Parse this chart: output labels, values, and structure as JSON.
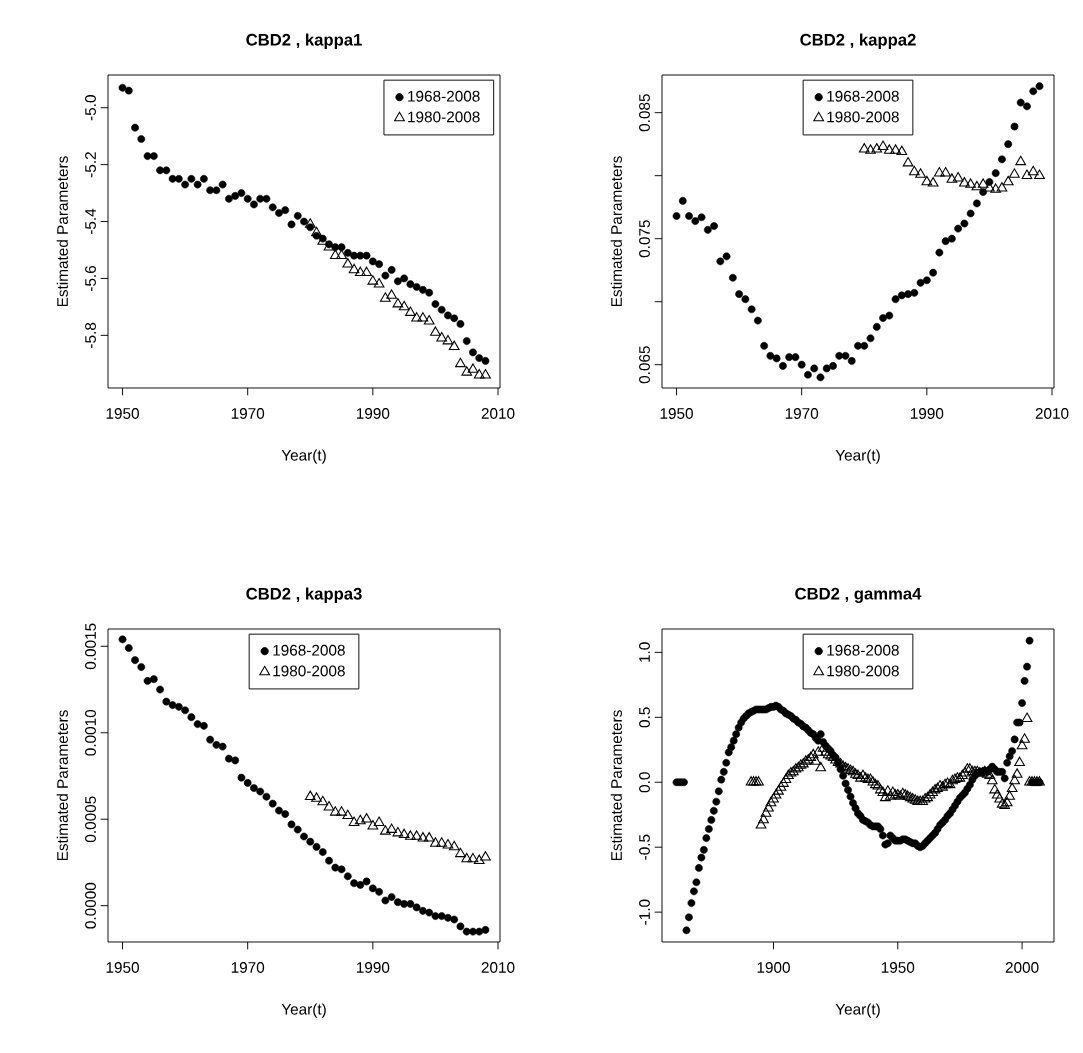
{
  "chart_data": [
    {
      "type": "scatter",
      "title": "CBD2 , kappa1",
      "xlabel": "Year(t)",
      "ylabel": "Estimated Parameters",
      "legend": "top right",
      "xlim": [
        1947.68,
        2010.32
      ],
      "ylim": [
        -5.985,
        -4.885
      ],
      "xticks": [
        1950,
        1970,
        1990,
        2010
      ],
      "yticks": [
        {
          "value": -5,
          "label": "-5.0"
        },
        -5.2,
        -5.4,
        -5.6,
        -5.8
      ],
      "series": [
        {
          "name": "1968-2008",
          "color": "#000000",
          "marker": "circle",
          "x": [
            1950,
            1951,
            1952,
            1953,
            1954,
            1955,
            1956,
            1957,
            1958,
            1959,
            1960,
            1961,
            1962,
            1963,
            1964,
            1965,
            1966,
            1967,
            1968,
            1969,
            1970,
            1971,
            1972,
            1973,
            1974,
            1975,
            1976,
            1977,
            1978,
            1979,
            1980,
            1981,
            1982,
            1983,
            1984,
            1985,
            1986,
            1987,
            1988,
            1989,
            1990,
            1991,
            1992,
            1993,
            1994,
            1995,
            1996,
            1997,
            1998,
            1999,
            2000,
            2001,
            2002,
            2003,
            2004,
            2005,
            2006,
            2007,
            2008
          ],
          "values": [
            -4.93,
            -4.94,
            -5.07,
            -5.11,
            -5.17,
            -5.17,
            -5.22,
            -5.22,
            -5.25,
            -5.25,
            -5.27,
            -5.25,
            -5.27,
            -5.25,
            -5.29,
            -5.29,
            -5.27,
            -5.32,
            -5.31,
            -5.3,
            -5.32,
            -5.34,
            -5.32,
            -5.32,
            -5.35,
            -5.37,
            -5.36,
            -5.41,
            -5.38,
            -5.4,
            -5.42,
            -5.45,
            -5.46,
            -5.48,
            -5.49,
            -5.49,
            -5.51,
            -5.52,
            -5.52,
            -5.52,
            -5.54,
            -5.55,
            -5.59,
            -5.57,
            -5.61,
            -5.6,
            -5.62,
            -5.63,
            -5.64,
            -5.65,
            -5.69,
            -5.71,
            -5.73,
            -5.74,
            -5.76,
            -5.82,
            -5.86,
            -5.88,
            -5.89
          ]
        },
        {
          "name": "1980-2008",
          "color": "#000000",
          "marker": "triangle",
          "x": [
            1980,
            1981,
            1982,
            1983,
            1984,
            1985,
            1986,
            1987,
            1988,
            1989,
            1990,
            1991,
            1992,
            1993,
            1994,
            1995,
            1996,
            1997,
            1998,
            1999,
            2000,
            2001,
            2002,
            2003,
            2004,
            2005,
            2006,
            2007,
            2008
          ],
          "values": [
            -5.41,
            -5.44,
            -5.47,
            -5.49,
            -5.52,
            -5.52,
            -5.55,
            -5.57,
            -5.58,
            -5.58,
            -5.61,
            -5.62,
            -5.67,
            -5.66,
            -5.69,
            -5.7,
            -5.72,
            -5.74,
            -5.74,
            -5.75,
            -5.79,
            -5.81,
            -5.82,
            -5.84,
            -5.9,
            -5.93,
            -5.92,
            -5.94,
            -5.94
          ]
        }
      ]
    },
    {
      "type": "scatter",
      "title": "CBD2 , kappa2",
      "xlabel": "Year(t)",
      "ylabel": "Estimated Parameters",
      "legend": "top",
      "xlim": [
        1947.68,
        2010.32
      ],
      "ylim": [
        0.06315,
        0.08799
      ],
      "xticks": [
        1950,
        1970,
        1990,
        2010
      ],
      "yticks": [
        0.065,
        {
          "value": 0.07,
          "label": null
        },
        0.075,
        {
          "value": 0.08,
          "label": null
        },
        0.085
      ],
      "series": [
        {
          "name": "1968-2008",
          "color": "#000000",
          "marker": "circle",
          "x": [
            1950,
            1951,
            1952,
            1953,
            1954,
            1955,
            1956,
            1957,
            1958,
            1959,
            1960,
            1961,
            1962,
            1963,
            1964,
            1965,
            1966,
            1967,
            1968,
            1969,
            1970,
            1971,
            1972,
            1973,
            1974,
            1975,
            1976,
            1977,
            1978,
            1979,
            1980,
            1981,
            1982,
            1983,
            1984,
            1985,
            1986,
            1987,
            1988,
            1989,
            1990,
            1991,
            1992,
            1993,
            1994,
            1995,
            1996,
            1997,
            1998,
            1999,
            2000,
            2001,
            2002,
            2003,
            2004,
            2005,
            2006,
            2007,
            2008
          ],
          "values": [
            0.0768,
            0.078,
            0.0768,
            0.0764,
            0.0767,
            0.0757,
            0.076,
            0.0732,
            0.0736,
            0.0719,
            0.0706,
            0.0702,
            0.0694,
            0.0685,
            0.0665,
            0.0657,
            0.0655,
            0.0649,
            0.0656,
            0.0656,
            0.065,
            0.0642,
            0.0647,
            0.064,
            0.0647,
            0.0649,
            0.0657,
            0.0657,
            0.0653,
            0.0665,
            0.0665,
            0.0671,
            0.068,
            0.0687,
            0.0689,
            0.0702,
            0.0705,
            0.0706,
            0.0707,
            0.0715,
            0.0717,
            0.0723,
            0.0739,
            0.0748,
            0.075,
            0.0758,
            0.0762,
            0.077,
            0.0778,
            0.0787,
            0.0795,
            0.0802,
            0.0813,
            0.0825,
            0.0839,
            0.0858,
            0.0855,
            0.0867,
            0.0871
          ]
        },
        {
          "name": "1980-2008",
          "color": "#000000",
          "marker": "triangle",
          "x": [
            1980,
            1981,
            1982,
            1983,
            1984,
            1985,
            1986,
            1987,
            1988,
            1989,
            1990,
            1991,
            1992,
            1993,
            1994,
            1995,
            1996,
            1997,
            1998,
            1999,
            2000,
            2001,
            2002,
            2003,
            2004,
            2005,
            2006,
            2007,
            2008
          ],
          "values": [
            0.0821,
            0.082,
            0.0821,
            0.0823,
            0.082,
            0.082,
            0.0819,
            0.081,
            0.0803,
            0.0801,
            0.0795,
            0.0794,
            0.0802,
            0.0802,
            0.0797,
            0.0798,
            0.0794,
            0.0793,
            0.0791,
            0.0793,
            0.079,
            0.0789,
            0.079,
            0.0795,
            0.0801,
            0.0811,
            0.08,
            0.0803,
            0.08
          ]
        }
      ]
    },
    {
      "type": "scatter",
      "title": "CBD2 , kappa3",
      "xlabel": "Year(t)",
      "ylabel": "Estimated Parameters",
      "legend": "top",
      "xlim": [
        1947.68,
        2010.32
      ],
      "ylim": [
        -0.00021,
        0.0016
      ],
      "xticks": [
        1950,
        1970,
        1990,
        2010
      ],
      "yticks": [
        {
          "value": 0,
          "label": "0.0000"
        },
        {
          "value": 0.0005,
          "label": "0.0005"
        },
        {
          "value": 0.001,
          "label": "0.0010"
        },
        {
          "value": 0.0015,
          "label": "0.0015"
        }
      ],
      "series": [
        {
          "name": "1968-2008",
          "color": "#000000",
          "marker": "circle",
          "x": [
            1950,
            1951,
            1952,
            1953,
            1954,
            1955,
            1956,
            1957,
            1958,
            1959,
            1960,
            1961,
            1962,
            1963,
            1964,
            1965,
            1966,
            1967,
            1968,
            1969,
            1970,
            1971,
            1972,
            1973,
            1974,
            1975,
            1976,
            1977,
            1978,
            1979,
            1980,
            1981,
            1982,
            1983,
            1984,
            1985,
            1986,
            1987,
            1988,
            1989,
            1990,
            1991,
            1992,
            1993,
            1994,
            1995,
            1996,
            1997,
            1998,
            1999,
            2000,
            2001,
            2002,
            2003,
            2004,
            2005,
            2006,
            2007,
            2008
          ],
          "values": [
            0.00154,
            0.00149,
            0.00142,
            0.00138,
            0.0013,
            0.00131,
            0.00125,
            0.00118,
            0.00116,
            0.00115,
            0.00113,
            0.00109,
            0.00105,
            0.00104,
            0.00096,
            0.00093,
            0.00092,
            0.00085,
            0.00084,
            0.00074,
            0.00071,
            0.00068,
            0.00066,
            0.00063,
            0.00059,
            0.00055,
            0.00053,
            0.00047,
            0.00044,
            0.0004,
            0.00037,
            0.00034,
            0.00031,
            0.00026,
            0.00022,
            0.00021,
            0.00017,
            0.00013,
            0.00012,
            0.00014,
            0.0001,
            8e-05,
            3e-05,
            5e-05,
            2e-05,
            1e-05,
            1e-05,
            -1e-05,
            -3e-05,
            -4e-05,
            -6e-05,
            -6e-05,
            -7e-05,
            -8e-05,
            -0.00012,
            -0.00015,
            -0.00015,
            -0.00015,
            -0.00014
          ]
        },
        {
          "name": "1980-2008",
          "color": "#000000",
          "marker": "triangle",
          "x": [
            1980,
            1981,
            1982,
            1983,
            1984,
            1985,
            1986,
            1987,
            1988,
            1989,
            1990,
            1991,
            1992,
            1993,
            1994,
            1995,
            1996,
            1997,
            1998,
            1999,
            2000,
            2001,
            2002,
            2003,
            2004,
            2005,
            2006,
            2007,
            2008
          ],
          "values": [
            0.00063,
            0.00062,
            0.0006,
            0.00057,
            0.00054,
            0.00054,
            0.00052,
            0.00048,
            0.00049,
            0.0005,
            0.00046,
            0.00048,
            0.00043,
            0.00044,
            0.00042,
            0.00041,
            0.0004,
            0.0004,
            0.00039,
            0.00039,
            0.00036,
            0.00036,
            0.00035,
            0.00034,
            0.0003,
            0.00027,
            0.00027,
            0.00026,
            0.00028
          ]
        }
      ]
    },
    {
      "type": "scatter",
      "title": "CBD2 , gamma4",
      "xlabel": "Year(t)",
      "ylabel": "Estimated Parameters",
      "legend": "top",
      "xlim": [
        1855.16,
        2012.84
      ],
      "ylim": [
        -1.23,
        1.18
      ],
      "xticks": [
        1900,
        1950,
        2000
      ],
      "yticks": [
        {
          "value": -1,
          "label": "-1.0"
        },
        -0.5,
        {
          "value": 0,
          "label": "0.0"
        },
        0.5,
        {
          "value": 1,
          "label": "1.0"
        }
      ],
      "series": [
        {
          "name": "1968-2008",
          "color": "#000000",
          "marker": "circle",
          "x": [
            1861,
            1862,
            1863,
            1864,
            1865,
            1866,
            1867,
            1868,
            1869,
            1870,
            1871,
            1872,
            1873,
            1874,
            1875,
            1876,
            1877,
            1878,
            1879,
            1880,
            1881,
            1882,
            1883,
            1884,
            1885,
            1886,
            1887,
            1888,
            1889,
            1890,
            1891,
            1892,
            1893,
            1894,
            1895,
            1896,
            1897,
            1898,
            1899,
            1900,
            1901,
            1902,
            1903,
            1904,
            1905,
            1906,
            1907,
            1908,
            1909,
            1910,
            1911,
            1912,
            1913,
            1914,
            1915,
            1916,
            1917,
            1918,
            1919,
            1920,
            1921,
            1922,
            1923,
            1924,
            1925,
            1926,
            1927,
            1928,
            1929,
            1930,
            1931,
            1932,
            1933,
            1934,
            1935,
            1936,
            1937,
            1938,
            1939,
            1940,
            1941,
            1942,
            1943,
            1944,
            1945,
            1946,
            1947,
            1948,
            1949,
            1950,
            1951,
            1952,
            1953,
            1954,
            1955,
            1956,
            1957,
            1958,
            1959,
            1960,
            1961,
            1962,
            1963,
            1964,
            1965,
            1966,
            1967,
            1968,
            1969,
            1970,
            1971,
            1972,
            1973,
            1974,
            1975,
            1976,
            1977,
            1978,
            1979,
            1980,
            1981,
            1982,
            1983,
            1984,
            1985,
            1986,
            1987,
            1988,
            1989,
            1990,
            1991,
            1992,
            1993,
            1994,
            1995,
            1996,
            1997,
            1998,
            1999,
            2000,
            2001,
            2002,
            2003,
            2004,
            2005,
            2006,
            2007
          ],
          "values": [
            0,
            0,
            0,
            0,
            -1.14,
            -1.04,
            -0.93,
            -0.84,
            -0.77,
            -0.66,
            -0.58,
            -0.52,
            -0.43,
            -0.36,
            -0.29,
            -0.22,
            -0.15,
            -0.07,
            0.02,
            0.08,
            0.15,
            0.23,
            0.27,
            0.32,
            0.37,
            0.42,
            0.46,
            0.49,
            0.51,
            0.53,
            0.54,
            0.55,
            0.56,
            0.56,
            0.56,
            0.56,
            0.56,
            0.57,
            0.58,
            0.58,
            0.59,
            0.58,
            0.56,
            0.55,
            0.53,
            0.52,
            0.51,
            0.49,
            0.48,
            0.46,
            0.45,
            0.43,
            0.42,
            0.4,
            0.38,
            0.37,
            0.34,
            0.32,
            0.37,
            0.31,
            0.28,
            0.26,
            0.24,
            0.21,
            0.19,
            0.15,
            0.1,
            0.05,
            -0.01,
            -0.06,
            -0.11,
            -0.16,
            -0.2,
            -0.24,
            -0.26,
            -0.29,
            -0.3,
            -0.31,
            -0.33,
            -0.34,
            -0.34,
            -0.34,
            -0.36,
            -0.41,
            -0.48,
            -0.47,
            -0.41,
            -0.43,
            -0.45,
            -0.45,
            -0.45,
            -0.44,
            -0.44,
            -0.45,
            -0.46,
            -0.47,
            -0.47,
            -0.49,
            -0.5,
            -0.49,
            -0.47,
            -0.45,
            -0.43,
            -0.41,
            -0.39,
            -0.36,
            -0.33,
            -0.31,
            -0.29,
            -0.26,
            -0.24,
            -0.21,
            -0.18,
            -0.15,
            -0.12,
            -0.1,
            -0.08,
            -0.05,
            -0.02,
            0.02,
            0.05,
            0.07,
            0.08,
            0.08,
            0.09,
            0.08,
            0.1,
            0.12,
            0.1,
            0.08,
            0.08,
            0.08,
            0.03,
            0.15,
            0.2,
            0.24,
            0.33,
            0.46,
            0.46,
            0.61,
            0.78,
            0.89,
            1.09,
            0,
            0,
            0,
            0
          ]
        },
        {
          "name": "1980-2008",
          "color": "#000000",
          "marker": "triangle",
          "x": [
            1891,
            1892,
            1893,
            1894,
            1895,
            1896,
            1897,
            1898,
            1899,
            1900,
            1901,
            1902,
            1903,
            1904,
            1905,
            1906,
            1907,
            1908,
            1909,
            1910,
            1911,
            1912,
            1913,
            1914,
            1915,
            1916,
            1917,
            1918,
            1919,
            1920,
            1921,
            1922,
            1923,
            1924,
            1925,
            1926,
            1927,
            1928,
            1929,
            1930,
            1931,
            1932,
            1933,
            1934,
            1935,
            1936,
            1937,
            1938,
            1939,
            1940,
            1941,
            1942,
            1943,
            1944,
            1945,
            1946,
            1947,
            1948,
            1949,
            1950,
            1951,
            1952,
            1953,
            1954,
            1955,
            1956,
            1957,
            1958,
            1959,
            1960,
            1961,
            1962,
            1963,
            1964,
            1965,
            1966,
            1967,
            1968,
            1969,
            1970,
            1971,
            1972,
            1973,
            1974,
            1975,
            1976,
            1977,
            1978,
            1979,
            1980,
            1981,
            1982,
            1983,
            1984,
            1985,
            1986,
            1987,
            1988,
            1989,
            1990,
            1991,
            1992,
            1993,
            1994,
            1995,
            1996,
            1997,
            1998,
            1999,
            2000,
            2001,
            2002,
            2003,
            2004,
            2005,
            2006,
            2007
          ],
          "values": [
            0,
            0,
            0,
            0,
            -0.33,
            -0.29,
            -0.24,
            -0.2,
            -0.16,
            -0.13,
            -0.1,
            -0.07,
            -0.04,
            -0.01,
            0.02,
            0.05,
            0.07,
            0.08,
            0.1,
            0.11,
            0.13,
            0.14,
            0.16,
            0.17,
            0.19,
            0.21,
            0.16,
            0.23,
            0.11,
            0.26,
            0.23,
            0.21,
            0.2,
            0.19,
            0.17,
            0.15,
            0.14,
            0.12,
            0.11,
            0.1,
            0.09,
            0.08,
            0.06,
            0.05,
            0.03,
            0.05,
            0.03,
            0.02,
            0.02,
            0.0,
            -0.02,
            -0.03,
            -0.06,
            -0.08,
            -0.12,
            -0.07,
            -0.11,
            -0.08,
            -0.1,
            -0.1,
            -0.11,
            -0.09,
            -0.1,
            -0.11,
            -0.12,
            -0.13,
            -0.14,
            -0.15,
            -0.15,
            -0.15,
            -0.13,
            -0.12,
            -0.1,
            -0.08,
            -0.06,
            -0.05,
            -0.03,
            -0.04,
            -0.02,
            -0.01,
            -0.02,
            0.01,
            0.02,
            0.03,
            0.03,
            0.05,
            0.07,
            0.1,
            0.1,
            0.08,
            0.08,
            0.08,
            0.07,
            0.07,
            0.08,
            0.06,
            0.05,
            0.01,
            -0.06,
            -0.1,
            -0.13,
            -0.17,
            -0.18,
            -0.16,
            -0.11,
            -0.05,
            0.01,
            0.06,
            0.15,
            0.28,
            0.33,
            0.49,
            0,
            0,
            0,
            0,
            0
          ]
        }
      ]
    }
  ]
}
